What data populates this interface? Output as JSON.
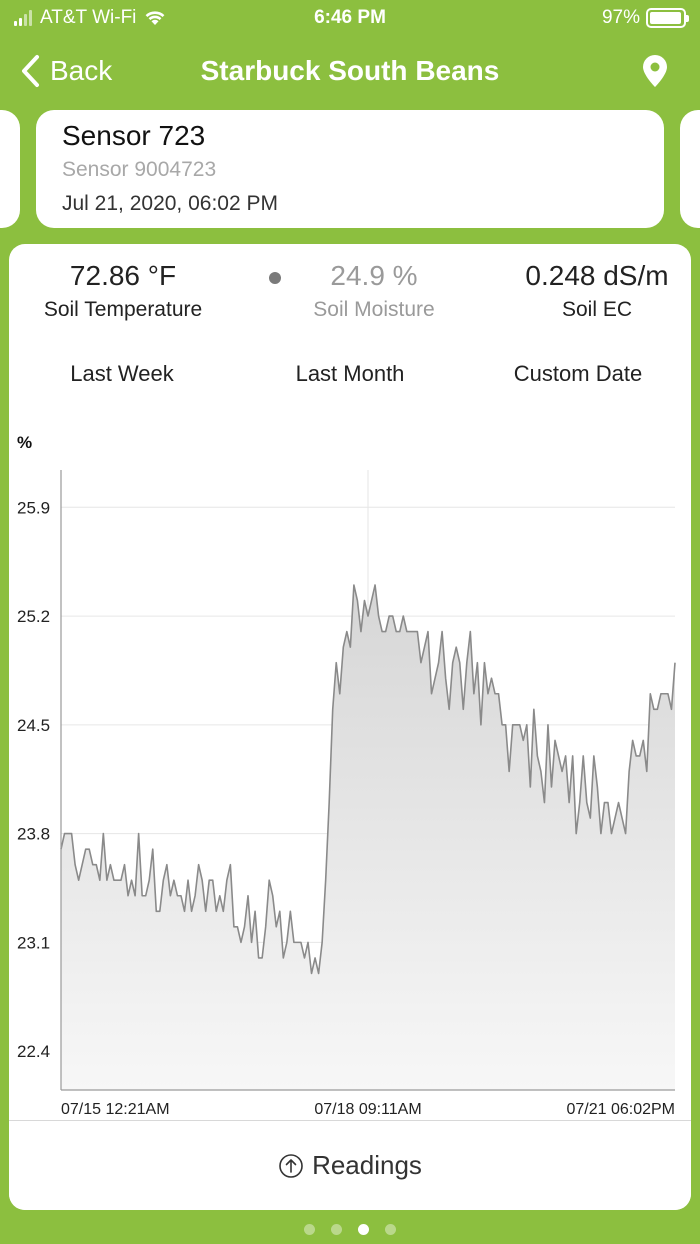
{
  "status_bar": {
    "carrier": "AT&T Wi-Fi",
    "time": "6:46 PM",
    "battery": "97%",
    "battery_level": 0.97
  },
  "nav": {
    "back_label": "Back",
    "title": "Starbuck South Beans",
    "icons": {
      "back": "chevron-left-icon",
      "location": "map-pin-icon"
    }
  },
  "sensor": {
    "name": "Sensor 723",
    "id": "Sensor 9004723",
    "date": "Jul 21, 2020, 06:02 PM"
  },
  "metrics": [
    {
      "value": "72.86 °F",
      "label": "Soil Temperature"
    },
    {
      "value": "24.9 %",
      "label": "Soil Moisture"
    },
    {
      "value": "0.248 dS/m",
      "label": "Soil EC"
    }
  ],
  "tabs": [
    {
      "label": "Last Week",
      "active": true
    },
    {
      "label": "Last Month",
      "active": false
    },
    {
      "label": "Custom Date",
      "active": false
    }
  ],
  "chart_data": {
    "type": "area",
    "title": "",
    "ylabel": "%",
    "xlabel": "",
    "ylim": [
      22.15,
      26.14
    ],
    "y_ticks": [
      "25.9",
      "25.2",
      "24.5",
      "23.8",
      "23.1",
      "22.4"
    ],
    "y_tick_values": [
      25.9,
      25.2,
      24.5,
      23.8,
      23.1,
      22.4
    ],
    "x_tick_labels": [
      "07/15 12:21AM",
      "07/18 09:11AM",
      "07/21 06:02PM"
    ],
    "grid": true,
    "line_color": "#8a8a8a",
    "fill_color": "#e0e0e0",
    "series": [
      {
        "values": [
          23.7,
          23.8,
          23.8,
          23.8,
          23.6,
          23.5,
          23.6,
          23.7,
          23.7,
          23.6,
          23.6,
          23.5,
          23.8,
          23.5,
          23.6,
          23.5,
          23.5,
          23.5,
          23.6,
          23.4,
          23.5,
          23.4,
          23.8,
          23.4,
          23.4,
          23.5,
          23.7,
          23.3,
          23.3,
          23.5,
          23.6,
          23.4,
          23.5,
          23.4,
          23.4,
          23.3,
          23.5,
          23.3,
          23.4,
          23.6,
          23.5,
          23.3,
          23.5,
          23.5,
          23.3,
          23.4,
          23.3,
          23.5,
          23.6,
          23.2,
          23.2,
          23.1,
          23.2,
          23.4,
          23.1,
          23.3,
          23.0,
          23.0,
          23.2,
          23.5,
          23.4,
          23.2,
          23.3,
          23.0,
          23.1,
          23.3,
          23.1,
          23.1,
          23.1,
          23.0,
          23.1,
          22.9,
          23.0,
          22.9,
          23.1,
          23.5,
          24.0,
          24.6,
          24.9,
          24.7,
          25.0,
          25.1,
          25.0,
          25.4,
          25.3,
          25.1,
          25.3,
          25.2,
          25.3,
          25.4,
          25.2,
          25.1,
          25.1,
          25.2,
          25.2,
          25.1,
          25.1,
          25.2,
          25.1,
          25.1,
          25.1,
          25.1,
          24.9,
          25.0,
          25.1,
          24.7,
          24.8,
          24.9,
          25.1,
          24.8,
          24.6,
          24.9,
          25.0,
          24.9,
          24.6,
          24.9,
          25.1,
          24.7,
          24.9,
          24.5,
          24.9,
          24.7,
          24.8,
          24.7,
          24.7,
          24.5,
          24.5,
          24.2,
          24.5,
          24.5,
          24.5,
          24.4,
          24.5,
          24.1,
          24.6,
          24.3,
          24.2,
          24.0,
          24.5,
          24.1,
          24.4,
          24.3,
          24.2,
          24.3,
          24.0,
          24.3,
          23.8,
          24.0,
          24.3,
          24.0,
          23.9,
          24.3,
          24.1,
          23.8,
          24.0,
          24.0,
          23.8,
          23.9,
          24.0,
          23.9,
          23.8,
          24.2,
          24.4,
          24.3,
          24.3,
          24.4,
          24.2,
          24.7,
          24.6,
          24.6,
          24.7,
          24.7,
          24.7,
          24.6,
          24.9
        ]
      }
    ]
  },
  "readings_label": "Readings",
  "readings_icon": "arrow-up-circle-icon",
  "page_dots": [
    {
      "active": false
    },
    {
      "active": false
    },
    {
      "active": true
    },
    {
      "active": false
    }
  ]
}
